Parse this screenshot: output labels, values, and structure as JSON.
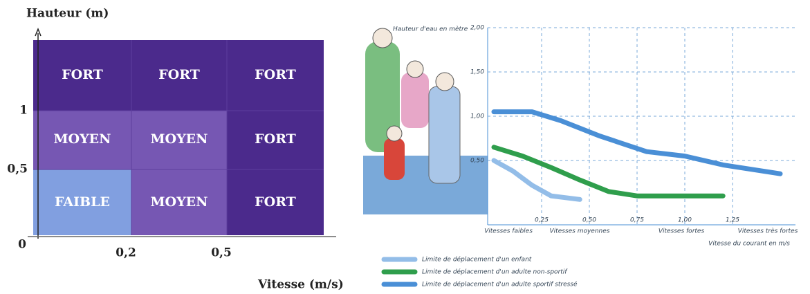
{
  "diagram": {
    "y_title": "Hauteur (m)",
    "x_title": "Vitesse (m/s)",
    "y_labels": [
      "1",
      "0,5",
      "0"
    ],
    "x_labels": [
      "0,2",
      "0,5"
    ],
    "rows": [
      [
        "FORT",
        "FORT",
        "FORT"
      ],
      [
        "MOYEN",
        "MOYEN",
        "FORT"
      ],
      [
        "FAIBLE",
        "MOYEN",
        "FORT"
      ]
    ]
  },
  "chart_data": {
    "type": "line",
    "y_label": "Hauteur d'eau en mètre",
    "x_label": "Vitesse du courant en m/s",
    "speed_classes": [
      "Vitesses faibles",
      "Vitesses moyennes",
      "Vitesses fortes",
      "Vitesses très fortes"
    ],
    "xlim": [
      0,
      1.5
    ],
    "ylim": [
      0,
      2.0
    ],
    "xticks": [
      {
        "value": 0.25,
        "label": "0,25"
      },
      {
        "value": 0.5,
        "label": "0,50"
      },
      {
        "value": 0.75,
        "label": "0,75"
      },
      {
        "value": 1.0,
        "label": "1,00"
      },
      {
        "value": 1.25,
        "label": "1,25"
      }
    ],
    "yticks": [
      {
        "value": 0.5,
        "label": "0,50"
      },
      {
        "value": 1.0,
        "label": "1,00"
      },
      {
        "value": 1.5,
        "label": "1,50"
      },
      {
        "value": 2.0,
        "label": "2,00"
      }
    ],
    "grid": true,
    "series": [
      {
        "name": "Limite de déplacement d'un enfant",
        "color": "#93bde8",
        "x": [
          0,
          0.1,
          0.2,
          0.3,
          0.45
        ],
        "values": [
          0.5,
          0.38,
          0.22,
          0.1,
          0.06
        ]
      },
      {
        "name": "Limite de déplacement d'un adulte non-sportif",
        "color": "#2f9e4c",
        "x": [
          0,
          0.15,
          0.3,
          0.45,
          0.6,
          0.75,
          1.0,
          1.2
        ],
        "values": [
          0.65,
          0.55,
          0.42,
          0.28,
          0.15,
          0.1,
          0.1,
          0.1
        ]
      },
      {
        "name": "Limite de déplacement d'un adulte sportif stressé",
        "color": "#4a8fd6",
        "x": [
          0,
          0.2,
          0.35,
          0.55,
          0.8,
          1.0,
          1.2,
          1.5
        ],
        "values": [
          1.05,
          1.05,
          0.95,
          0.78,
          0.6,
          0.55,
          0.45,
          0.35
        ]
      }
    ]
  }
}
